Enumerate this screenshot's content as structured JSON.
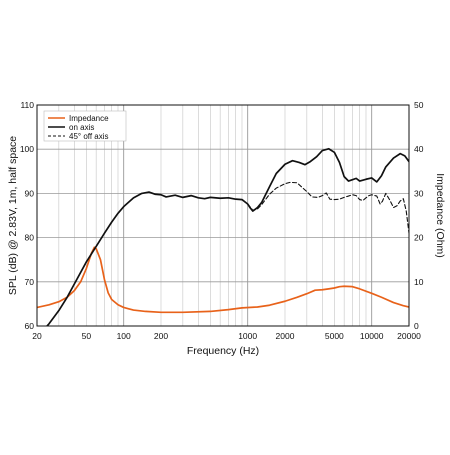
{
  "chart_data": {
    "type": "line",
    "xlabel": "Frequency (Hz)",
    "ylabel": "SPL (dB) @ 2.83V, 1m, half space",
    "y2label": "Impedance (Ohm)",
    "xscale": "log",
    "xlim": [
      20,
      20000
    ],
    "ylim": [
      60,
      110
    ],
    "y2lim": [
      0,
      50
    ],
    "grid": true,
    "legend_position": "top-left",
    "x_tick_labels": [
      "20",
      "50",
      "100",
      "200",
      "1000",
      "2000",
      "5000",
      "10000",
      "20000"
    ],
    "y_tick_labels": [
      "60",
      "70",
      "80",
      "90",
      "100",
      "110"
    ],
    "y2_tick_labels": [
      "0",
      "10",
      "20",
      "30",
      "40",
      "50"
    ],
    "series": [
      {
        "name": "Impedance",
        "axis": "right",
        "color": "#e8621a",
        "style": "solid",
        "points": [
          [
            20,
            4.2
          ],
          [
            25,
            4.8
          ],
          [
            30,
            5.5
          ],
          [
            35,
            6.5
          ],
          [
            40,
            8
          ],
          [
            45,
            10
          ],
          [
            50,
            13
          ],
          [
            55,
            16.5
          ],
          [
            58,
            17.8
          ],
          [
            60,
            17.5
          ],
          [
            65,
            15
          ],
          [
            70,
            10.5
          ],
          [
            75,
            7.5
          ],
          [
            80,
            6
          ],
          [
            90,
            4.8
          ],
          [
            100,
            4.2
          ],
          [
            120,
            3.6
          ],
          [
            150,
            3.3
          ],
          [
            200,
            3.1
          ],
          [
            300,
            3.1
          ],
          [
            500,
            3.3
          ],
          [
            700,
            3.7
          ],
          [
            900,
            4.1
          ],
          [
            1200,
            4.3
          ],
          [
            1500,
            4.7
          ],
          [
            2000,
            5.6
          ],
          [
            2500,
            6.5
          ],
          [
            3000,
            7.3
          ],
          [
            3500,
            8.1
          ],
          [
            4000,
            8.2
          ],
          [
            4500,
            8.4
          ],
          [
            5000,
            8.6
          ],
          [
            5500,
            8.9
          ],
          [
            6000,
            9.0
          ],
          [
            7000,
            8.9
          ],
          [
            8000,
            8.4
          ],
          [
            10000,
            7.4
          ],
          [
            12000,
            6.5
          ],
          [
            15000,
            5.3
          ],
          [
            18000,
            4.6
          ],
          [
            20000,
            4.3
          ]
        ]
      },
      {
        "name": "on axis",
        "axis": "left",
        "color": "#111111",
        "style": "solid",
        "points": [
          [
            20,
            57.5
          ],
          [
            25,
            60.5
          ],
          [
            30,
            63.5
          ],
          [
            35,
            66.5
          ],
          [
            40,
            69.5
          ],
          [
            50,
            74.5
          ],
          [
            60,
            78
          ],
          [
            70,
            81
          ],
          [
            80,
            83.5
          ],
          [
            90,
            85.5
          ],
          [
            100,
            87
          ],
          [
            120,
            89
          ],
          [
            140,
            90
          ],
          [
            160,
            90.3
          ],
          [
            180,
            89.8
          ],
          [
            200,
            89.7
          ],
          [
            220,
            89.2
          ],
          [
            260,
            89.6
          ],
          [
            300,
            89.1
          ],
          [
            350,
            89.5
          ],
          [
            400,
            89
          ],
          [
            450,
            88.8
          ],
          [
            500,
            89.1
          ],
          [
            600,
            88.9
          ],
          [
            700,
            89
          ],
          [
            800,
            88.7
          ],
          [
            900,
            88.6
          ],
          [
            1000,
            87.6
          ],
          [
            1050,
            86.7
          ],
          [
            1100,
            86
          ],
          [
            1200,
            86.8
          ],
          [
            1300,
            88
          ],
          [
            1500,
            91.5
          ],
          [
            1700,
            94.5
          ],
          [
            2000,
            96.6
          ],
          [
            2300,
            97.4
          ],
          [
            2600,
            97
          ],
          [
            2900,
            96.5
          ],
          [
            3200,
            97.2
          ],
          [
            3600,
            98.3
          ],
          [
            4000,
            99.7
          ],
          [
            4500,
            100.1
          ],
          [
            5000,
            99.3
          ],
          [
            5500,
            97
          ],
          [
            6000,
            93.8
          ],
          [
            6500,
            92.8
          ],
          [
            7000,
            93.1
          ],
          [
            7500,
            93.4
          ],
          [
            8000,
            92.8
          ],
          [
            9000,
            93.2
          ],
          [
            10000,
            93.5
          ],
          [
            11000,
            92.6
          ],
          [
            12000,
            94
          ],
          [
            13000,
            96
          ],
          [
            15000,
            98
          ],
          [
            17000,
            99
          ],
          [
            18500,
            98.5
          ],
          [
            20000,
            97.2
          ]
        ]
      },
      {
        "name": "45° off axis",
        "axis": "left",
        "color": "#111111",
        "style": "dashed",
        "points": [
          [
            1000,
            87.6
          ],
          [
            1100,
            86.2
          ],
          [
            1200,
            86.5
          ],
          [
            1300,
            87.5
          ],
          [
            1500,
            89.8
          ],
          [
            1700,
            91.2
          ],
          [
            2000,
            92.2
          ],
          [
            2200,
            92.5
          ],
          [
            2500,
            92.4
          ],
          [
            3000,
            90.4
          ],
          [
            3300,
            89.2
          ],
          [
            3700,
            89.1
          ],
          [
            4000,
            89.5
          ],
          [
            4300,
            90.1
          ],
          [
            4600,
            88.7
          ],
          [
            5000,
            88.6
          ],
          [
            5500,
            88.7
          ],
          [
            6000,
            89.1
          ],
          [
            6500,
            89.4
          ],
          [
            7000,
            89.7
          ],
          [
            7500,
            89.5
          ],
          [
            8000,
            88.6
          ],
          [
            8500,
            88.4
          ],
          [
            9000,
            89
          ],
          [
            9500,
            89.5
          ],
          [
            10000,
            89.7
          ],
          [
            11000,
            89.4
          ],
          [
            11700,
            87.6
          ],
          [
            12200,
            88.2
          ],
          [
            13000,
            90
          ],
          [
            14000,
            88.5
          ],
          [
            15000,
            86.8
          ],
          [
            16000,
            87.2
          ],
          [
            17000,
            88.3
          ],
          [
            18000,
            88.8
          ],
          [
            19000,
            86
          ],
          [
            20000,
            81
          ]
        ]
      }
    ]
  },
  "legend": {
    "items": [
      {
        "label": "Impedance",
        "color": "#e8621a",
        "style": "solid"
      },
      {
        "label": "on axis",
        "color": "#111111",
        "style": "solid"
      },
      {
        "label": "45° off axis",
        "color": "#111111",
        "style": "dashed"
      }
    ]
  }
}
